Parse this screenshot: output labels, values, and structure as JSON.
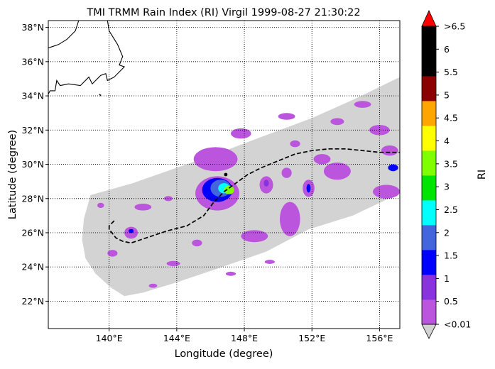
{
  "chart_data": {
    "type": "heatmap",
    "title": "TMI TRMM Rain Index (RI) Virgil 1999-08-27 21:30:22",
    "xlabel": "Longitude (degree)",
    "ylabel": "Latitude (degree)",
    "xlim": [
      136.4,
      157.2
    ],
    "ylim": [
      20.4,
      38.4
    ],
    "x_ticks": [
      {
        "value": 140,
        "label": "140°E"
      },
      {
        "value": 144,
        "label": "144°E"
      },
      {
        "value": 148,
        "label": "148°E"
      },
      {
        "value": 152,
        "label": "152°E"
      },
      {
        "value": 156,
        "label": "156°E"
      }
    ],
    "y_ticks": [
      {
        "value": 22,
        "label": "22°N"
      },
      {
        "value": 24,
        "label": "24°N"
      },
      {
        "value": 26,
        "label": "26°N"
      },
      {
        "value": 28,
        "label": "28°N"
      },
      {
        "value": 30,
        "label": "30°N"
      },
      {
        "value": 32,
        "label": "32°N"
      },
      {
        "value": 34,
        "label": "34°N"
      },
      {
        "value": 36,
        "label": "36°N"
      },
      {
        "value": 38,
        "label": "38°N"
      }
    ],
    "grid": "dotted",
    "swath_polygon": [
      [
        140.9,
        22.3
      ],
      [
        140.1,
        22.8
      ],
      [
        139.2,
        23.6
      ],
      [
        138.6,
        24.5
      ],
      [
        138.4,
        25.6
      ],
      [
        138.5,
        26.8
      ],
      [
        138.9,
        28.2
      ],
      [
        141.4,
        28.9
      ],
      [
        144.0,
        29.8
      ],
      [
        146.6,
        30.7
      ],
      [
        149.0,
        31.6
      ],
      [
        152.0,
        32.7
      ],
      [
        154.5,
        33.8
      ],
      [
        157.2,
        35.1
      ],
      [
        157.2,
        28.3
      ],
      [
        154.4,
        27.0
      ],
      [
        151.8,
        26.2
      ],
      [
        149.3,
        24.9
      ],
      [
        146.4,
        23.9
      ],
      [
        144.0,
        23.1
      ],
      [
        142.0,
        22.5
      ]
    ],
    "storm_track": [
      [
        140.3,
        26.7
      ],
      [
        140.0,
        26.4
      ],
      [
        140.0,
        26.2
      ],
      [
        140.4,
        25.7
      ],
      [
        140.8,
        25.5
      ],
      [
        141.3,
        25.4
      ],
      [
        142.2,
        25.7
      ],
      [
        143.4,
        26.1
      ],
      [
        144.6,
        26.4
      ],
      [
        145.6,
        27.0
      ],
      [
        146.2,
        27.8
      ],
      [
        146.8,
        28.4
      ],
      [
        147.5,
        28.9
      ],
      [
        148.2,
        29.4
      ],
      [
        149.0,
        29.8
      ],
      [
        150.0,
        30.2
      ],
      [
        151.0,
        30.6
      ],
      [
        152.0,
        30.8
      ],
      [
        153.0,
        30.9
      ],
      [
        154.0,
        30.9
      ],
      [
        155.0,
        30.8
      ],
      [
        156.0,
        30.7
      ],
      [
        157.2,
        30.7
      ]
    ],
    "rain_cells": [
      {
        "lon": 146.4,
        "lat": 28.3,
        "rx": 1.3,
        "ry": 1.0,
        "level": 0
      },
      {
        "lon": 146.4,
        "lat": 28.5,
        "rx": 0.9,
        "ry": 0.7,
        "level": 2
      },
      {
        "lon": 146.6,
        "lat": 28.6,
        "rx": 0.6,
        "ry": 0.5,
        "level": 3
      },
      {
        "lon": 146.8,
        "lat": 28.6,
        "rx": 0.35,
        "ry": 0.3,
        "level": 4
      },
      {
        "lon": 147.1,
        "lat": 28.5,
        "rx": 0.3,
        "ry": 0.25,
        "level": 6
      },
      {
        "lon": 146.9,
        "lat": 29.4,
        "rx": 0.1,
        "ry": 0.1,
        "level": 10
      },
      {
        "lon": 146.3,
        "lat": 30.3,
        "rx": 1.3,
        "ry": 0.7,
        "level": 0
      },
      {
        "lon": 149.3,
        "lat": 28.8,
        "rx": 0.4,
        "ry": 0.5,
        "level": 0
      },
      {
        "lon": 149.3,
        "lat": 28.9,
        "rx": 0.15,
        "ry": 0.2,
        "level": 1
      },
      {
        "lon": 151.8,
        "lat": 28.6,
        "rx": 0.35,
        "ry": 0.5,
        "level": 0
      },
      {
        "lon": 151.8,
        "lat": 28.6,
        "rx": 0.12,
        "ry": 0.25,
        "level": 2
      },
      {
        "lon": 150.7,
        "lat": 26.8,
        "rx": 0.6,
        "ry": 1.0,
        "level": 0
      },
      {
        "lon": 148.6,
        "lat": 25.8,
        "rx": 0.8,
        "ry": 0.35,
        "level": 0
      },
      {
        "lon": 145.2,
        "lat": 25.4,
        "rx": 0.3,
        "ry": 0.2,
        "level": 0
      },
      {
        "lon": 141.3,
        "lat": 26.0,
        "rx": 0.4,
        "ry": 0.35,
        "level": 0
      },
      {
        "lon": 141.3,
        "lat": 26.1,
        "rx": 0.15,
        "ry": 0.12,
        "level": 2
      },
      {
        "lon": 140.2,
        "lat": 24.8,
        "rx": 0.3,
        "ry": 0.2,
        "level": 0
      },
      {
        "lon": 142.0,
        "lat": 27.5,
        "rx": 0.5,
        "ry": 0.2,
        "level": 0
      },
      {
        "lon": 156.4,
        "lat": 28.4,
        "rx": 0.8,
        "ry": 0.4,
        "level": 0
      },
      {
        "lon": 156.6,
        "lat": 30.8,
        "rx": 0.5,
        "ry": 0.3,
        "level": 0
      },
      {
        "lon": 156.8,
        "lat": 29.8,
        "rx": 0.3,
        "ry": 0.2,
        "level": 2
      },
      {
        "lon": 156.0,
        "lat": 32.0,
        "rx": 0.6,
        "ry": 0.3,
        "level": 0
      },
      {
        "lon": 155.0,
        "lat": 33.5,
        "rx": 0.5,
        "ry": 0.2,
        "level": 0
      },
      {
        "lon": 153.5,
        "lat": 32.5,
        "rx": 0.4,
        "ry": 0.2,
        "level": 0
      },
      {
        "lon": 150.5,
        "lat": 32.8,
        "rx": 0.5,
        "ry": 0.2,
        "level": 0
      },
      {
        "lon": 147.8,
        "lat": 31.8,
        "rx": 0.6,
        "ry": 0.3,
        "level": 0
      },
      {
        "lon": 153.5,
        "lat": 29.6,
        "rx": 0.8,
        "ry": 0.5,
        "level": 0
      },
      {
        "lon": 152.6,
        "lat": 30.3,
        "rx": 0.5,
        "ry": 0.3,
        "level": 0
      },
      {
        "lon": 143.8,
        "lat": 24.2,
        "rx": 0.4,
        "ry": 0.15,
        "level": 0
      },
      {
        "lon": 147.2,
        "lat": 23.6,
        "rx": 0.3,
        "ry": 0.12,
        "level": 0
      },
      {
        "lon": 149.5,
        "lat": 24.3,
        "rx": 0.3,
        "ry": 0.12,
        "level": 0
      },
      {
        "lon": 150.5,
        "lat": 29.5,
        "rx": 0.3,
        "ry": 0.3,
        "level": 0
      },
      {
        "lon": 143.5,
        "lat": 28.0,
        "rx": 0.25,
        "ry": 0.15,
        "level": 0
      },
      {
        "lon": 139.5,
        "lat": 27.6,
        "rx": 0.2,
        "ry": 0.15,
        "level": 0
      },
      {
        "lon": 142.6,
        "lat": 22.9,
        "rx": 0.25,
        "ry": 0.12,
        "level": 0
      },
      {
        "lon": 151.0,
        "lat": 31.2,
        "rx": 0.3,
        "ry": 0.2,
        "level": 0
      }
    ],
    "colorbar": {
      "label": "RI",
      "colors": [
        "#bb55dd",
        "#8833dd",
        "#0000ff",
        "#4466dd",
        "#00ffff",
        "#00e500",
        "#80ff00",
        "#ffff00",
        "#ffa500",
        "#8b0000",
        "#000000",
        "#000000"
      ],
      "under_color": "#d3d3d3",
      "over_color": "#ff0000",
      "swath_color": "#d3d3d3",
      "tick_labels": [
        "<0.01",
        "0.5",
        "1",
        "1.5",
        "2",
        "2.5",
        "3",
        "3.5",
        "4",
        "4.5",
        "5",
        "5.5",
        "6",
        ">6.5"
      ]
    },
    "coastline": [
      [
        [
          138.2,
          38.4
        ],
        [
          138.0,
          37.8
        ],
        [
          137.5,
          37.3
        ],
        [
          137.0,
          37.0
        ],
        [
          136.7,
          36.9
        ],
        [
          136.4,
          36.8
        ]
      ],
      [
        [
          139.9,
          38.4
        ],
        [
          140.0,
          37.8
        ],
        [
          140.5,
          37.0
        ],
        [
          140.8,
          36.3
        ],
        [
          140.6,
          35.8
        ],
        [
          140.9,
          35.7
        ],
        [
          140.3,
          35.1
        ],
        [
          139.9,
          34.9
        ],
        [
          139.8,
          35.3
        ],
        [
          139.5,
          35.2
        ],
        [
          139.0,
          34.7
        ],
        [
          138.8,
          35.1
        ],
        [
          138.3,
          34.6
        ],
        [
          137.6,
          34.7
        ],
        [
          137.1,
          34.6
        ],
        [
          136.9,
          34.9
        ],
        [
          136.8,
          34.3
        ],
        [
          136.5,
          34.3
        ],
        [
          136.4,
          34.1
        ]
      ],
      [
        [
          139.4,
          34.1
        ],
        [
          139.5,
          34.05
        ],
        [
          139.45,
          33.98
        ]
      ]
    ]
  }
}
